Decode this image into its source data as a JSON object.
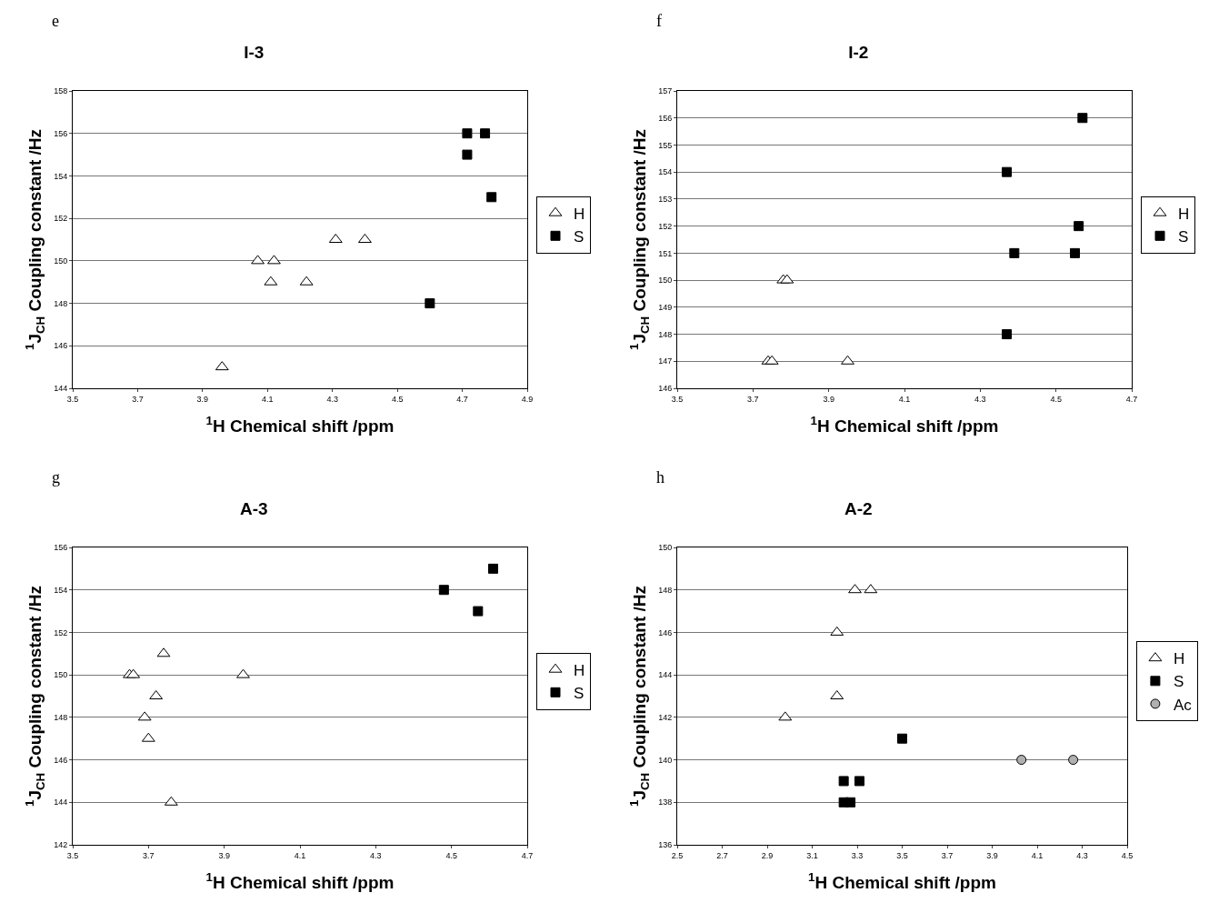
{
  "chart_data": [
    {
      "type": "scatter",
      "title": "I-3",
      "annotations": [
        "e"
      ],
      "xlabel": "$^{1}$H Chemical shift /ppm",
      "ylabel": "$^{1}$J$_{CH}$ Coupling constant /Hz",
      "xlim": [
        3.5,
        4.9
      ],
      "xticks": [
        3.5,
        3.7,
        3.9,
        4.1,
        4.3,
        4.5,
        4.7,
        4.9
      ],
      "ylim": [
        144,
        158
      ],
      "yticks": [
        144,
        146,
        148,
        150,
        152,
        154,
        156,
        158
      ],
      "grid": "y",
      "legend": "right",
      "series": [
        {
          "name": "H",
          "color": "#ffffff",
          "marker": "triangle",
          "x": [
            3.96,
            4.07,
            4.12,
            4.11,
            4.22,
            4.31,
            4.4
          ],
          "values": [
            145,
            150,
            150,
            149,
            149,
            151,
            151
          ]
        },
        {
          "name": "S",
          "color": "#000000",
          "marker": "square",
          "x": [
            4.715,
            4.77,
            4.715,
            4.79,
            4.6
          ],
          "values": [
            156,
            156,
            155,
            153,
            148
          ]
        }
      ]
    },
    {
      "type": "scatter",
      "title": "I-2",
      "annotations": [
        "f"
      ],
      "xlabel": "$^{1}$H Chemical shift /ppm",
      "ylabel": "$^{1}$J$_{CH}$ Coupling constant /Hz",
      "xlim": [
        3.5,
        4.7
      ],
      "xticks": [
        3.5,
        3.7,
        3.9,
        4.1,
        4.3,
        4.5,
        4.7
      ],
      "ylim": [
        146,
        157
      ],
      "yticks": [
        146,
        147,
        148,
        149,
        150,
        151,
        152,
        153,
        154,
        155,
        156,
        157
      ],
      "grid": "y",
      "legend": "right",
      "series": [
        {
          "name": "H",
          "color": "#ffffff",
          "marker": "triangle",
          "x": [
            3.78,
            3.79,
            3.74,
            3.75,
            3.95
          ],
          "values": [
            150,
            150,
            147,
            147,
            147
          ]
        },
        {
          "name": "S",
          "color": "#000000",
          "marker": "square",
          "x": [
            4.57,
            4.37,
            4.56,
            4.39,
            4.55,
            4.37
          ],
          "values": [
            156,
            154,
            152,
            151,
            151,
            148
          ]
        }
      ]
    },
    {
      "type": "scatter",
      "title": "A-3",
      "annotations": [
        "g"
      ],
      "xlabel": "$^{1}$H Chemical shift /ppm",
      "ylabel": "$^{1}$J$_{CH}$ Coupling constant /Hz",
      "xlim": [
        3.5,
        4.7
      ],
      "xticks": [
        3.5,
        3.7,
        3.9,
        4.1,
        4.3,
        4.5,
        4.7
      ],
      "ylim": [
        142,
        156
      ],
      "yticks": [
        142,
        144,
        146,
        148,
        150,
        152,
        154,
        156
      ],
      "grid": "y",
      "legend": "right",
      "series": [
        {
          "name": "H",
          "color": "#ffffff",
          "marker": "triangle",
          "x": [
            3.65,
            3.66,
            3.74,
            3.72,
            3.69,
            3.7,
            3.76,
            3.95
          ],
          "values": [
            150,
            150,
            151,
            149,
            148,
            147,
            144,
            150
          ]
        },
        {
          "name": "S",
          "color": "#000000",
          "marker": "square",
          "x": [
            4.48,
            4.57,
            4.61
          ],
          "values": [
            154,
            153,
            155
          ]
        }
      ]
    },
    {
      "type": "scatter",
      "title": "A-2",
      "annotations": [
        "h"
      ],
      "xlabel": "$^{1}$H Chemical shift /ppm",
      "ylabel": "$^{1}$J$_{CH}$ Coupling constant /Hz",
      "xlim": [
        2.5,
        4.5
      ],
      "xticks": [
        2.5,
        2.7,
        2.9,
        3.1,
        3.3,
        3.5,
        3.7,
        3.9,
        4.1,
        4.3,
        4.5
      ],
      "ylim": [
        136,
        150
      ],
      "yticks": [
        136,
        138,
        140,
        142,
        144,
        146,
        148,
        150
      ],
      "grid": "y",
      "legend": "right",
      "series": [
        {
          "name": "H",
          "color": "#ffffff",
          "marker": "triangle",
          "x": [
            2.98,
            3.21,
            3.21,
            3.29,
            3.36
          ],
          "values": [
            142,
            143,
            146,
            148,
            148
          ]
        },
        {
          "name": "S",
          "color": "#000000",
          "marker": "square",
          "x": [
            3.5,
            3.24,
            3.31,
            3.24,
            3.27
          ],
          "values": [
            141,
            139,
            139,
            138,
            138
          ]
        },
        {
          "name": "Ac",
          "color": "#b0b0b0",
          "marker": "circle",
          "x": [
            4.03,
            4.26
          ],
          "values": [
            140,
            140
          ]
        }
      ]
    }
  ]
}
